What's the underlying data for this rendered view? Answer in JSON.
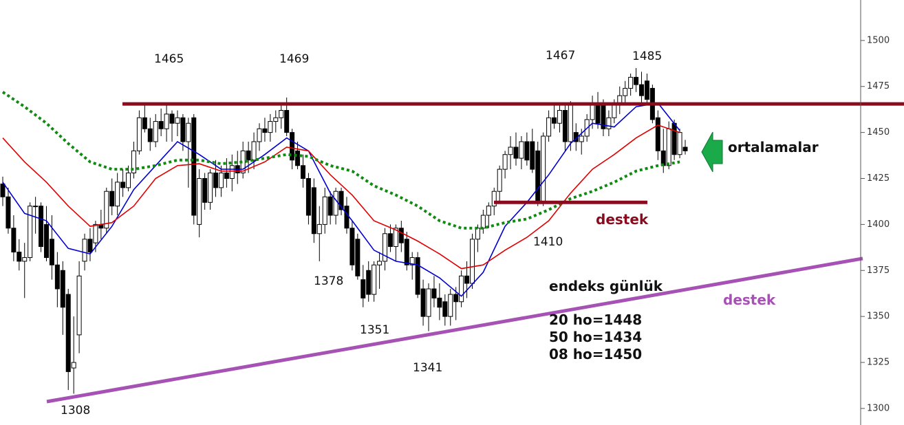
{
  "chart_data": {
    "type": "candlestick",
    "ylim": [
      1291,
      1522
    ],
    "yticks": [
      1300,
      1325,
      1350,
      1375,
      1400,
      1425,
      1450,
      1475,
      1500
    ],
    "candle_colors": {
      "up": "#ffffff",
      "down": "#000000",
      "outline": "#000000"
    },
    "open": [
      1422,
      1415,
      1398,
      1385,
      1380,
      1382,
      1410,
      1410,
      1400,
      1392,
      1378,
      1375,
      1362,
      1322,
      1340,
      1380,
      1392,
      1390,
      1400,
      1398,
      1418,
      1410,
      1423,
      1420,
      1428,
      1440,
      1458,
      1452,
      1445,
      1456,
      1452,
      1460,
      1455,
      1458,
      1445,
      1458,
      1400,
      1425,
      1412,
      1428,
      1420,
      1428,
      1425,
      1432,
      1428,
      1440,
      1435,
      1445,
      1452,
      1450,
      1456,
      1458,
      1462,
      1450,
      1440,
      1432,
      1425,
      1420,
      1395,
      1400,
      1415,
      1405,
      1418,
      1410,
      1398,
      1392,
      1370,
      1375,
      1362,
      1378,
      1380,
      1395,
      1388,
      1398,
      1392,
      1378,
      1382,
      1365,
      1350,
      1365,
      1360,
      1358,
      1350,
      1362,
      1358,
      1372,
      1368,
      1392,
      1398,
      1405,
      1410,
      1418,
      1430,
      1438,
      1442,
      1436,
      1445,
      1445,
      1440,
      1412,
      1448,
      1458,
      1455,
      1462,
      1445,
      1450,
      1445,
      1448,
      1457,
      1466,
      1465,
      1452,
      1458,
      1465,
      1470,
      1474,
      1480,
      1476,
      1478,
      1474,
      1458,
      1440,
      1432,
      1455,
      1438,
      1442
    ],
    "high": [
      1426,
      1420,
      1405,
      1392,
      1390,
      1412,
      1415,
      1412,
      1410,
      1405,
      1385,
      1380,
      1365,
      1350,
      1380,
      1395,
      1398,
      1402,
      1408,
      1420,
      1425,
      1428,
      1430,
      1432,
      1445,
      1462,
      1465,
      1458,
      1460,
      1463,
      1465,
      1462,
      1462,
      1460,
      1458,
      1460,
      1430,
      1428,
      1430,
      1435,
      1432,
      1436,
      1438,
      1440,
      1445,
      1445,
      1450,
      1455,
      1458,
      1460,
      1462,
      1465,
      1469,
      1452,
      1445,
      1438,
      1428,
      1425,
      1410,
      1420,
      1418,
      1420,
      1420,
      1415,
      1402,
      1395,
      1378,
      1380,
      1380,
      1385,
      1398,
      1400,
      1400,
      1402,
      1396,
      1385,
      1385,
      1370,
      1368,
      1372,
      1368,
      1362,
      1365,
      1366,
      1375,
      1380,
      1395,
      1400,
      1408,
      1412,
      1420,
      1432,
      1440,
      1448,
      1450,
      1448,
      1450,
      1452,
      1445,
      1450,
      1462,
      1465,
      1466,
      1466,
      1467,
      1455,
      1452,
      1460,
      1470,
      1472,
      1468,
      1462,
      1468,
      1475,
      1478,
      1482,
      1485,
      1483,
      1482,
      1476,
      1462,
      1452,
      1456,
      1457,
      1452,
      1446
    ],
    "low": [
      1410,
      1395,
      1380,
      1375,
      1360,
      1380,
      1395,
      1385,
      1380,
      1370,
      1355,
      1340,
      1310,
      1308,
      1330,
      1375,
      1380,
      1385,
      1392,
      1395,
      1405,
      1405,
      1415,
      1418,
      1425,
      1438,
      1450,
      1440,
      1442,
      1448,
      1445,
      1445,
      1448,
      1440,
      1420,
      1400,
      1393,
      1408,
      1408,
      1415,
      1415,
      1420,
      1418,
      1422,
      1425,
      1428,
      1430,
      1440,
      1445,
      1445,
      1450,
      1452,
      1448,
      1430,
      1430,
      1420,
      1400,
      1390,
      1380,
      1395,
      1400,
      1400,
      1405,
      1395,
      1375,
      1370,
      1355,
      1358,
      1358,
      1365,
      1375,
      1385,
      1380,
      1385,
      1375,
      1370,
      1360,
      1345,
      1342,
      1355,
      1348,
      1345,
      1345,
      1348,
      1355,
      1360,
      1365,
      1385,
      1395,
      1398,
      1405,
      1412,
      1425,
      1430,
      1432,
      1430,
      1432,
      1428,
      1410,
      1410,
      1445,
      1452,
      1450,
      1440,
      1440,
      1440,
      1438,
      1445,
      1452,
      1452,
      1448,
      1448,
      1455,
      1460,
      1465,
      1470,
      1472,
      1466,
      1465,
      1455,
      1435,
      1428,
      1430,
      1435,
      1436,
      1438
    ],
    "close": [
      1415,
      1398,
      1385,
      1380,
      1382,
      1410,
      1410,
      1388,
      1382,
      1378,
      1365,
      1355,
      1320,
      1325,
      1372,
      1392,
      1385,
      1400,
      1398,
      1418,
      1410,
      1423,
      1420,
      1428,
      1440,
      1458,
      1452,
      1445,
      1456,
      1452,
      1460,
      1455,
      1458,
      1445,
      1455,
      1405,
      1425,
      1412,
      1428,
      1420,
      1428,
      1425,
      1432,
      1428,
      1440,
      1435,
      1445,
      1452,
      1450,
      1456,
      1458,
      1462,
      1450,
      1435,
      1432,
      1425,
      1405,
      1395,
      1400,
      1415,
      1405,
      1418,
      1408,
      1398,
      1378,
      1372,
      1360,
      1362,
      1378,
      1380,
      1395,
      1388,
      1398,
      1390,
      1378,
      1382,
      1362,
      1350,
      1365,
      1360,
      1355,
      1350,
      1362,
      1358,
      1372,
      1368,
      1392,
      1398,
      1405,
      1410,
      1418,
      1430,
      1438,
      1442,
      1436,
      1445,
      1435,
      1430,
      1412,
      1448,
      1458,
      1455,
      1462,
      1445,
      1465,
      1445,
      1448,
      1457,
      1466,
      1455,
      1452,
      1458,
      1465,
      1470,
      1474,
      1480,
      1476,
      1470,
      1468,
      1457,
      1440,
      1432,
      1452,
      1438,
      1450,
      1440
    ],
    "moving_averages": [
      {
        "color": "#0000d0",
        "dashed": false,
        "x": [
          0,
          4,
          8,
          12,
          16,
          20,
          24,
          28,
          32,
          36,
          40,
          44,
          48,
          52,
          56,
          60,
          64,
          68,
          72,
          76,
          80,
          84,
          88,
          92,
          96,
          100,
          104,
          108,
          112,
          116,
          120,
          124
        ],
        "values": [
          1423,
          1406,
          1402,
          1387,
          1384,
          1399,
          1419,
          1432,
          1445,
          1438,
          1430,
          1430,
          1438,
          1447,
          1440,
          1417,
          1402,
          1386,
          1380,
          1378,
          1371,
          1361,
          1374,
          1399,
          1412,
          1427,
          1444,
          1455,
          1453,
          1464,
          1466,
          1451
        ]
      },
      {
        "color": "#e00000",
        "dashed": false,
        "x": [
          0,
          4,
          8,
          12,
          16,
          20,
          24,
          28,
          32,
          36,
          40,
          44,
          48,
          52,
          56,
          60,
          64,
          68,
          72,
          76,
          80,
          84,
          88,
          92,
          96,
          100,
          104,
          108,
          112,
          116,
          120,
          124
        ],
        "values": [
          1447,
          1434,
          1423,
          1410,
          1399,
          1401,
          1410,
          1425,
          1432,
          1433,
          1429,
          1429,
          1434,
          1442,
          1440,
          1427,
          1416,
          1402,
          1397,
          1391,
          1384,
          1376,
          1378,
          1386,
          1393,
          1402,
          1417,
          1430,
          1438,
          1447,
          1454,
          1450
        ]
      },
      {
        "color": "#108a10",
        "dashed": true,
        "x": [
          0,
          4,
          8,
          12,
          16,
          20,
          24,
          28,
          32,
          36,
          40,
          44,
          48,
          52,
          56,
          60,
          64,
          68,
          72,
          76,
          80,
          84,
          88,
          92,
          96,
          100,
          104,
          108,
          112,
          116,
          120,
          124
        ],
        "values": [
          1472,
          1464,
          1455,
          1444,
          1434,
          1430,
          1430,
          1432,
          1435,
          1435,
          1433,
          1434,
          1436,
          1438,
          1437,
          1432,
          1429,
          1421,
          1416,
          1410,
          1402,
          1398,
          1398,
          1401,
          1403,
          1408,
          1414,
          1418,
          1423,
          1429,
          1432,
          1434
        ]
      }
    ],
    "resistance": {
      "value": 1465.5,
      "color": "#8b0a1e"
    },
    "support": {
      "value": 1412,
      "color": "#8b0a1e"
    },
    "trendline": {
      "values": [
        1303.7,
        1381.5
      ],
      "color": "#a652b5"
    },
    "annotations": [
      "1465",
      "1469",
      "1467",
      "1485",
      "1378",
      "1351",
      "1341",
      "1410",
      "1308"
    ],
    "labels": {
      "ma": "ortalamalar",
      "support": "destek",
      "trend": "destek",
      "index": "endeks günlük",
      "ma20": "20 ho=1448",
      "ma50": "50 ho=1434",
      "ma08": "08 ho=1450"
    }
  }
}
